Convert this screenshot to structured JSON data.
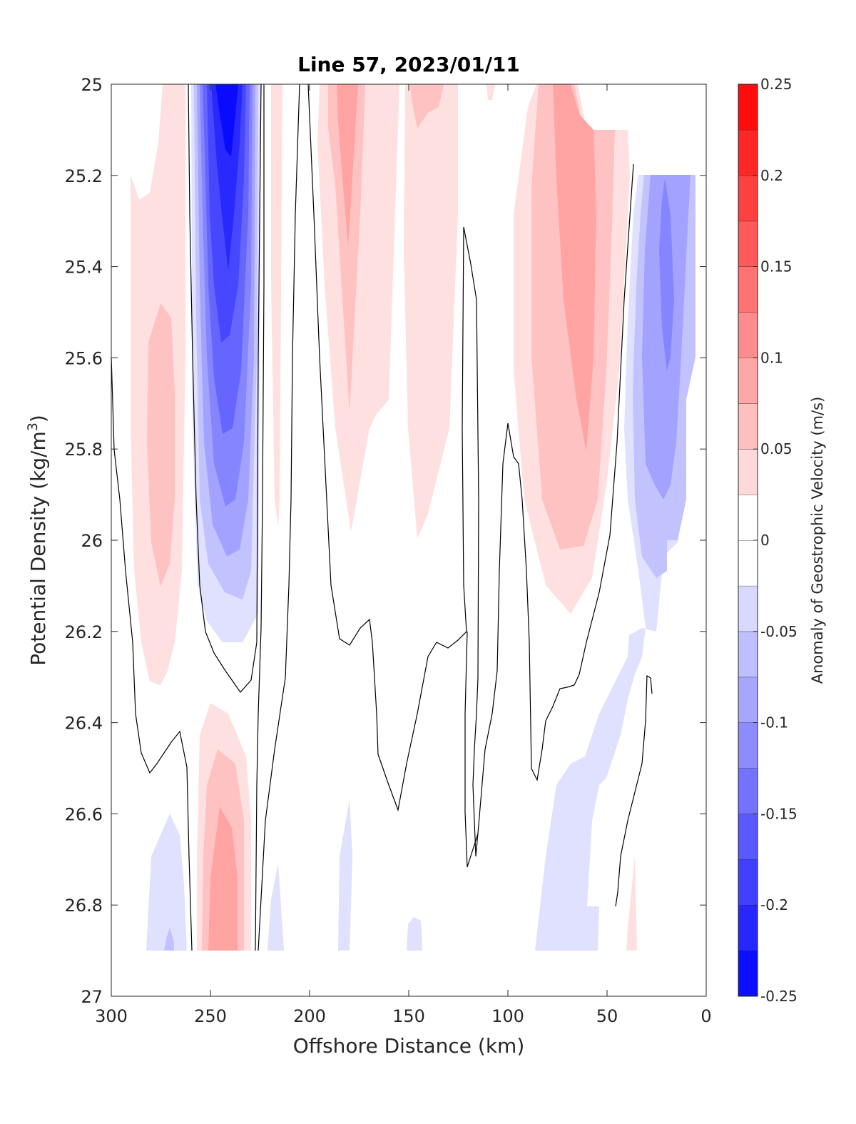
{
  "chart_data": {
    "type": "heatmap",
    "title": "Line 57, 2023/01/11",
    "xlabel": "Offshore Distance (km)",
    "ylabel_main": "Potential Density (kg/m",
    "ylabel_sup": "3",
    "ylabel_close": ")",
    "colorbar_label": "Anomaly of Geostrophic Velocity (m/s)",
    "xlim": [
      300,
      0
    ],
    "ylim": [
      25,
      27
    ],
    "y_reversed": true,
    "x_ticks": [
      300,
      250,
      200,
      150,
      100,
      50,
      0
    ],
    "y_ticks": [
      25,
      25.2,
      25.4,
      25.6,
      25.8,
      26,
      26.2,
      26.4,
      26.6,
      26.8,
      27
    ],
    "x_tick_labels": [
      "300",
      "250",
      "200",
      "150",
      "100",
      "50",
      "0"
    ],
    "y_tick_labels": [
      "25",
      "25.2",
      "25.4",
      "25.6",
      "25.8",
      "26",
      "26.2",
      "26.4",
      "26.6",
      "26.8",
      "27"
    ],
    "colorbar": {
      "range": [
        -0.25,
        0.25
      ],
      "step": 0.025,
      "ticks": [
        0.25,
        0.2,
        0.15,
        0.1,
        0.05,
        0,
        -0.05,
        -0.1,
        -0.15,
        -0.2,
        -0.25
      ],
      "tick_labels": [
        "0.25",
        "0.2",
        "0.15",
        "0.1",
        "0.05",
        "0",
        "-0.05",
        "-0.1",
        "-0.15",
        "-0.2",
        "-0.25"
      ],
      "negative_color": "#0000ff",
      "positive_color": "#ff0000",
      "neutral_color": "#ffffff"
    },
    "data_limits": {
      "x": [
        8,
        300
      ],
      "y": [
        25,
        26.9
      ]
    },
    "grid": false,
    "zero_contour": true,
    "features": [
      {
        "kind": "core",
        "x": 240,
        "y": 25.0,
        "value": -0.22
      },
      {
        "kind": "core",
        "x": 245,
        "y": 26.8,
        "value": 0.11
      },
      {
        "kind": "core",
        "x": 272,
        "y": 25.75,
        "value": 0.065
      },
      {
        "kind": "core",
        "x": 180,
        "y": 25.2,
        "value": 0.08
      },
      {
        "kind": "core",
        "x": 66,
        "y": 25.3,
        "value": 0.1
      },
      {
        "kind": "core",
        "x": 20,
        "y": 25.4,
        "value": -0.1
      },
      {
        "kind": "core",
        "x": 150,
        "y": 25.2,
        "value": 0.04
      },
      {
        "kind": "core",
        "x": 45,
        "y": 26.8,
        "value": -0.035
      }
    ]
  }
}
